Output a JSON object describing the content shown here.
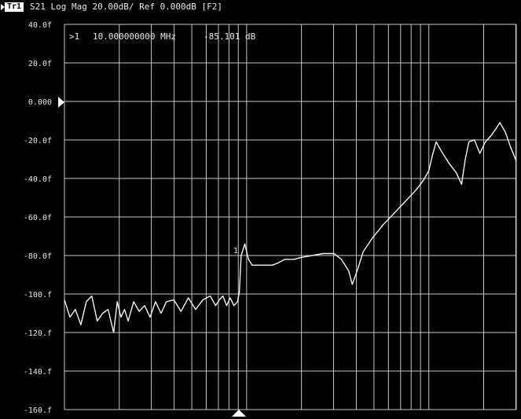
{
  "header": {
    "trace_badge": "Tr1",
    "trace_setup": "S21 Log Mag 20.00dB/ Ref 0.000dB [F2]"
  },
  "marker": {
    "index": ">1",
    "frequency": "10.000000000 MHz",
    "value": "-85.101 dB",
    "trace_label": "1"
  },
  "colors": {
    "background": "#000000",
    "trace": "#f2f2f2",
    "grid": "#c8c8c8",
    "text": "#e8e8e8"
  },
  "chart_data": {
    "type": "line",
    "y_scale": "linear",
    "x_scale": "log",
    "ylim": [
      -160,
      40
    ],
    "y_ticks": [
      40,
      20,
      0,
      -20,
      -40,
      -60,
      -80,
      -100,
      -120,
      -140,
      -160
    ],
    "y_tick_labels": [
      "40.0f",
      "20.0f",
      "0.000",
      "-20.0f",
      "-40.0f",
      "-60.0f",
      "-80.0f",
      "-100.f",
      "-120.f",
      "-140.f",
      "-160.f"
    ],
    "reference_level": 0,
    "xlim_decades": [
      0,
      2.48
    ],
    "grid": true,
    "series": [
      {
        "points": [
          [
            0.0,
            -103
          ],
          [
            0.03,
            -112
          ],
          [
            0.06,
            -108
          ],
          [
            0.09,
            -116
          ],
          [
            0.12,
            -104
          ],
          [
            0.15,
            -101
          ],
          [
            0.18,
            -114
          ],
          [
            0.21,
            -110
          ],
          [
            0.24,
            -108
          ],
          [
            0.27,
            -120
          ],
          [
            0.29,
            -104
          ],
          [
            0.31,
            -112
          ],
          [
            0.33,
            -108
          ],
          [
            0.35,
            -114
          ],
          [
            0.38,
            -104
          ],
          [
            0.41,
            -109
          ],
          [
            0.44,
            -106
          ],
          [
            0.47,
            -112
          ],
          [
            0.5,
            -104
          ],
          [
            0.53,
            -110
          ],
          [
            0.56,
            -104
          ],
          [
            0.6,
            -103
          ],
          [
            0.64,
            -109
          ],
          [
            0.68,
            -102
          ],
          [
            0.72,
            -108
          ],
          [
            0.76,
            -103
          ],
          [
            0.8,
            -101
          ],
          [
            0.83,
            -106
          ],
          [
            0.85,
            -103
          ],
          [
            0.87,
            -101
          ],
          [
            0.89,
            -106
          ],
          [
            0.91,
            -102
          ],
          [
            0.93,
            -106
          ],
          [
            0.95,
            -104
          ],
          [
            0.96,
            -99
          ],
          [
            0.97,
            -80
          ],
          [
            0.99,
            -74
          ],
          [
            1.01,
            -82
          ],
          [
            1.03,
            -85
          ],
          [
            1.06,
            -85
          ],
          [
            1.1,
            -85
          ],
          [
            1.14,
            -85
          ],
          [
            1.17,
            -84
          ],
          [
            1.21,
            -82
          ],
          [
            1.26,
            -82
          ],
          [
            1.3,
            -81
          ],
          [
            1.36,
            -80
          ],
          [
            1.42,
            -79
          ],
          [
            1.48,
            -79
          ],
          [
            1.52,
            -82
          ],
          [
            1.56,
            -88
          ],
          [
            1.58,
            -95
          ],
          [
            1.61,
            -87
          ],
          [
            1.64,
            -78
          ],
          [
            1.69,
            -71
          ],
          [
            1.75,
            -64
          ],
          [
            1.81,
            -58
          ],
          [
            1.87,
            -52
          ],
          [
            1.93,
            -46
          ],
          [
            1.97,
            -41
          ],
          [
            2.0,
            -36
          ],
          [
            2.02,
            -28
          ],
          [
            2.04,
            -21
          ],
          [
            2.07,
            -26
          ],
          [
            2.11,
            -32
          ],
          [
            2.15,
            -37
          ],
          [
            2.18,
            -43
          ],
          [
            2.2,
            -30
          ],
          [
            2.22,
            -21
          ],
          [
            2.25,
            -20
          ],
          [
            2.28,
            -27
          ],
          [
            2.31,
            -21
          ],
          [
            2.34,
            -18
          ],
          [
            2.37,
            -14
          ],
          [
            2.39,
            -11
          ],
          [
            2.42,
            -16
          ],
          [
            2.45,
            -24
          ],
          [
            2.48,
            -31
          ]
        ]
      }
    ]
  }
}
